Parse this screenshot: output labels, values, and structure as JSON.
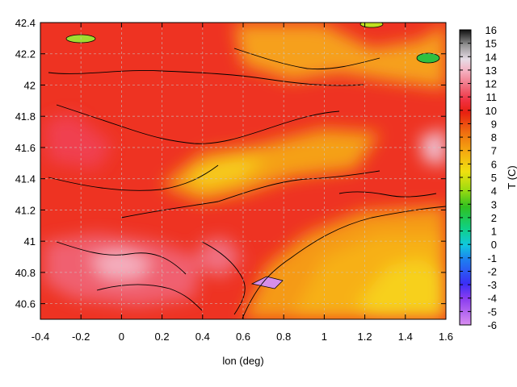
{
  "chart_data": {
    "type": "heatmap",
    "title": "",
    "xlabel": "lon (deg)",
    "ylabel": "",
    "colorbar_label": "T (C)",
    "xlim": [
      -0.4,
      1.6
    ],
    "ylim": [
      40.5,
      42.4
    ],
    "x_ticks": [
      "-0.4",
      "-0.2",
      "0",
      "0.2",
      "0.4",
      "0.6",
      "0.8",
      "1",
      "1.2",
      "1.4",
      "1.6"
    ],
    "y_ticks": [
      "40.6",
      "40.8",
      "41",
      "41.2",
      "41.4",
      "41.6",
      "41.8",
      "42",
      "42.2",
      "42.4"
    ],
    "colorbar_ticks": [
      "-6",
      "-5",
      "-4",
      "-3",
      "-2",
      "-1",
      "0",
      "1",
      "2",
      "3",
      "4",
      "5",
      "6",
      "7",
      "8",
      "9",
      "10",
      "11",
      "12",
      "13",
      "14",
      "15",
      "16"
    ],
    "colorbar_range": [
      -6,
      16
    ],
    "grid": true,
    "colormap": "gnuplot rainbow (violet-blue-cyan-green-yellow-orange-red-pink-white-black)",
    "contours": true,
    "temperature_field_approx": [
      {
        "lon": -0.35,
        "lat": 42.35,
        "T": 10.5
      },
      {
        "lon": 0.0,
        "lat": 42.25,
        "T": 11.0
      },
      {
        "lon": 0.8,
        "lat": 42.1,
        "T": 8.0
      },
      {
        "lon": 1.5,
        "lat": 42.2,
        "T": 4.0
      },
      {
        "lon": 0.4,
        "lat": 41.45,
        "T": 7.0
      },
      {
        "lon": 0.2,
        "lat": 41.2,
        "T": 9.0
      },
      {
        "lon": -0.2,
        "lat": 40.8,
        "T": 12.0
      },
      {
        "lon": 0.5,
        "lat": 40.85,
        "T": 11.5
      },
      {
        "lon": 1.1,
        "lat": 40.8,
        "T": 7.5
      },
      {
        "lon": 1.3,
        "lat": 40.6,
        "T": 6.5
      },
      {
        "lon": 1.5,
        "lat": 41.6,
        "T": 12.5
      },
      {
        "lon": 0.7,
        "lat": 40.75,
        "T": -5.0
      }
    ]
  }
}
